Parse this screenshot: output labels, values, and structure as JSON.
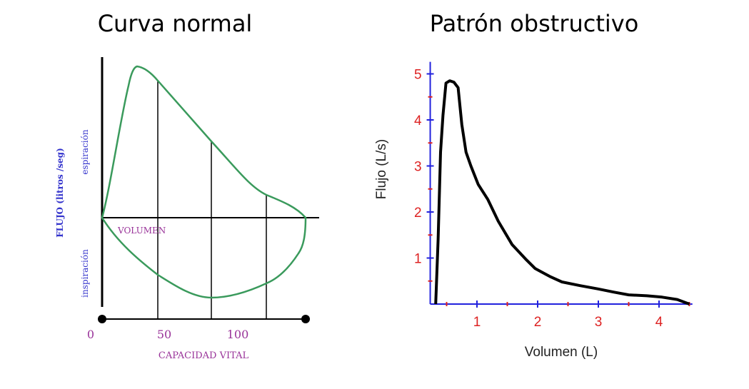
{
  "titles": {
    "left": "Curva normal",
    "right": "Patrón obstructivo"
  },
  "chart_data": [
    {
      "type": "line",
      "title": "Curva normal",
      "ylabel": "FLUJO (litros /seg)",
      "ylabel_upper": "espiración",
      "ylabel_lower": "inspiración",
      "axis_label_volume": "VOLUMEN",
      "xlabel": "CAPACIDAD VITAL",
      "x_tick_labels": [
        "0",
        "50",
        "100"
      ],
      "curve_shape": "closed flow-volume loop (expiration above axis, inspiration below)",
      "colors": {
        "curve": "#3a9a5c",
        "axis_labels": "#3333cc",
        "tick_labels": "#993399",
        "axes": "#000000"
      }
    },
    {
      "type": "line",
      "title": "Patrón obstructivo",
      "xlabel": "Volumen (L)",
      "ylabel": "Flujo (L/s)",
      "xlim": [
        0.23,
        4.55
      ],
      "ylim": [
        0,
        5.2
      ],
      "x_ticks": [
        1,
        2,
        3,
        4
      ],
      "y_ticks": [
        1,
        2,
        3,
        4,
        5
      ],
      "grid": false,
      "series": [
        {
          "x": [
            0.32,
            0.36,
            0.4,
            0.44,
            0.49,
            0.55,
            0.62,
            0.69,
            0.72,
            0.75,
            0.82,
            0.9,
            1.02,
            1.18,
            1.35,
            1.58,
            1.8,
            1.96,
            2.2,
            2.4,
            2.7,
            2.99,
            3.25,
            3.5,
            3.8,
            4.05,
            4.3,
            4.5
          ],
          "y": [
            0.0,
            1.4,
            3.3,
            4.1,
            4.8,
            4.85,
            4.82,
            4.7,
            4.3,
            3.9,
            3.3,
            3.0,
            2.6,
            2.27,
            1.8,
            1.29,
            0.98,
            0.77,
            0.6,
            0.48,
            0.4,
            0.33,
            0.26,
            0.2,
            0.18,
            0.15,
            0.1,
            0.0
          ]
        }
      ],
      "colors": {
        "curve": "#000000",
        "axes": "#2222dd",
        "tick_labels": "#dd2222",
        "minor_ticks": "#dd2222"
      }
    }
  ]
}
